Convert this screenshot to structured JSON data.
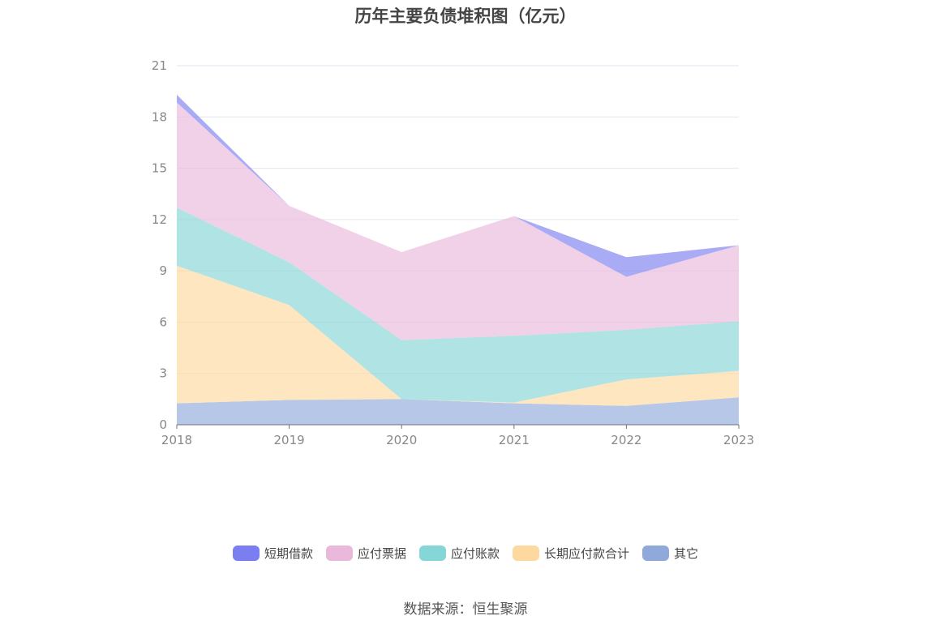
{
  "chart_data": {
    "type": "area",
    "stacked": true,
    "title": "历年主要负债堆积图（亿元）",
    "categories": [
      "2018",
      "2019",
      "2020",
      "2021",
      "2022",
      "2023"
    ],
    "ylim": [
      0,
      21
    ],
    "yticks": [
      0,
      3,
      6,
      9,
      12,
      15,
      18,
      21
    ],
    "grid": true,
    "legend_position": "bottom",
    "series": [
      {
        "name": "其它",
        "color": "#8fa9db",
        "values": [
          1.25,
          1.45,
          1.5,
          1.25,
          1.1,
          1.6
        ]
      },
      {
        "name": "长期应付款合计",
        "color": "#fdd9a0",
        "values": [
          8.05,
          5.55,
          0.0,
          0.05,
          1.55,
          1.55
        ]
      },
      {
        "name": "应付账款",
        "color": "#85d6d6",
        "values": [
          3.4,
          2.5,
          3.45,
          3.9,
          2.9,
          2.9
        ]
      },
      {
        "name": "应付票据",
        "color": "#eab8db",
        "values": [
          6.15,
          3.3,
          5.15,
          7.0,
          3.1,
          4.45
        ]
      },
      {
        "name": "短期借款",
        "color": "#7b7ef0",
        "values": [
          0.45,
          0.0,
          0.0,
          0.0,
          1.15,
          0.0
        ]
      }
    ],
    "legend_order": [
      "短期借款",
      "应付票据",
      "应付账款",
      "长期应付款合计",
      "其它"
    ]
  },
  "source_text": "数据来源：恒生聚源"
}
